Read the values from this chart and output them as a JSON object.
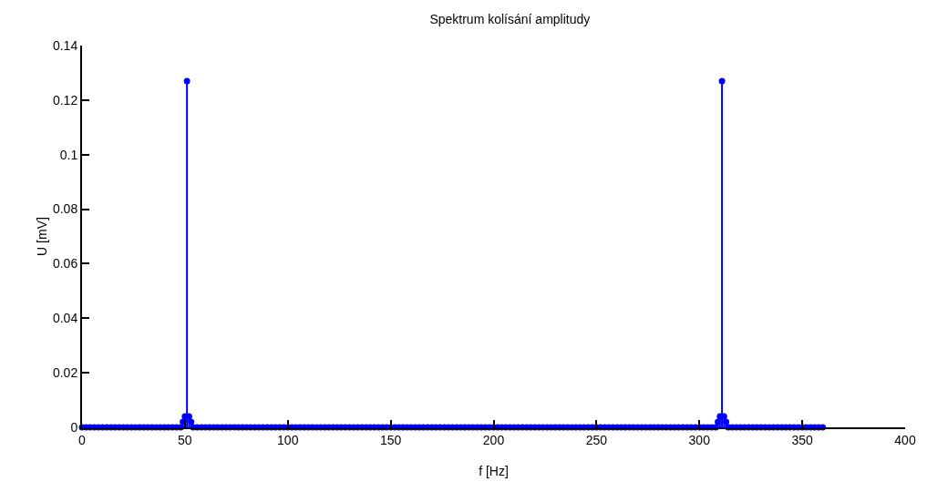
{
  "chart_data": {
    "type": "lollipop",
    "title": "Spektrum kolísání amplitudy",
    "xlabel": "f [Hz]",
    "ylabel": "U [mV]",
    "x": [
      0,
      2,
      4,
      6,
      8,
      10,
      12,
      14,
      16,
      18,
      20,
      22,
      24,
      26,
      28,
      30,
      32,
      34,
      36,
      38,
      40,
      42,
      44,
      46,
      48,
      49,
      50,
      51,
      52,
      53,
      54,
      56,
      58,
      60,
      62,
      64,
      66,
      68,
      70,
      72,
      74,
      76,
      78,
      80,
      82,
      84,
      86,
      88,
      90,
      92,
      94,
      96,
      98,
      100,
      102,
      104,
      106,
      108,
      110,
      112,
      114,
      116,
      118,
      120,
      122,
      124,
      126,
      128,
      130,
      132,
      134,
      136,
      138,
      140,
      142,
      144,
      146,
      148,
      150,
      152,
      154,
      156,
      158,
      160,
      162,
      164,
      166,
      168,
      170,
      172,
      174,
      176,
      178,
      180,
      182,
      184,
      186,
      188,
      190,
      192,
      194,
      196,
      198,
      200,
      202,
      204,
      206,
      208,
      210,
      212,
      214,
      216,
      218,
      220,
      222,
      224,
      226,
      228,
      230,
      232,
      234,
      236,
      238,
      240,
      242,
      244,
      246,
      248,
      250,
      252,
      254,
      256,
      258,
      260,
      262,
      264,
      266,
      268,
      270,
      272,
      274,
      276,
      278,
      280,
      282,
      284,
      286,
      288,
      290,
      292,
      294,
      296,
      298,
      300,
      302,
      304,
      306,
      308,
      309,
      310,
      311,
      312,
      313,
      314,
      316,
      318,
      320,
      322,
      324,
      326,
      328,
      330,
      332,
      334,
      336,
      338,
      340,
      342,
      344,
      346,
      348,
      350,
      352,
      354,
      356,
      358,
      360
    ],
    "values": [
      0,
      0,
      0,
      0,
      0,
      0,
      0,
      0,
      0,
      0,
      0,
      0,
      0,
      0,
      0,
      0,
      0,
      0,
      0,
      0,
      0,
      0,
      0,
      0,
      0,
      0.002,
      0.004,
      0.127,
      0.004,
      0.002,
      0,
      0,
      0,
      0,
      0,
      0,
      0,
      0,
      0,
      0,
      0,
      0,
      0,
      0,
      0,
      0,
      0,
      0,
      0,
      0,
      0,
      0,
      0,
      0,
      0,
      0,
      0,
      0,
      0,
      0,
      0,
      0,
      0,
      0,
      0,
      0,
      0,
      0,
      0,
      0,
      0,
      0,
      0,
      0,
      0,
      0,
      0,
      0,
      0,
      0,
      0,
      0,
      0,
      0,
      0,
      0,
      0,
      0,
      0,
      0,
      0,
      0,
      0,
      0,
      0,
      0,
      0,
      0,
      0,
      0,
      0,
      0,
      0,
      0,
      0,
      0,
      0,
      0,
      0,
      0,
      0,
      0,
      0,
      0,
      0,
      0,
      0,
      0,
      0,
      0,
      0,
      0,
      0,
      0,
      0,
      0,
      0,
      0,
      0,
      0,
      0,
      0,
      0,
      0,
      0,
      0,
      0,
      0,
      0,
      0,
      0,
      0,
      0,
      0,
      0,
      0,
      0,
      0,
      0,
      0,
      0,
      0,
      0,
      0,
      0,
      0,
      0,
      0,
      0.002,
      0.004,
      0.127,
      0.004,
      0.002,
      0,
      0,
      0,
      0,
      0,
      0,
      0,
      0,
      0,
      0,
      0,
      0,
      0,
      0,
      0,
      0,
      0,
      0,
      0,
      0,
      0,
      0,
      0,
      0
    ],
    "color": "#0000ff",
    "marker": "circle",
    "xlim": [
      0,
      400
    ],
    "xticks": [
      0,
      50,
      100,
      150,
      200,
      250,
      300,
      350,
      400
    ],
    "ylim": [
      0,
      0.14
    ],
    "yticks": [
      0,
      0.02,
      0.04,
      0.06,
      0.08,
      0.1,
      0.12,
      0.14
    ],
    "grid": false
  }
}
